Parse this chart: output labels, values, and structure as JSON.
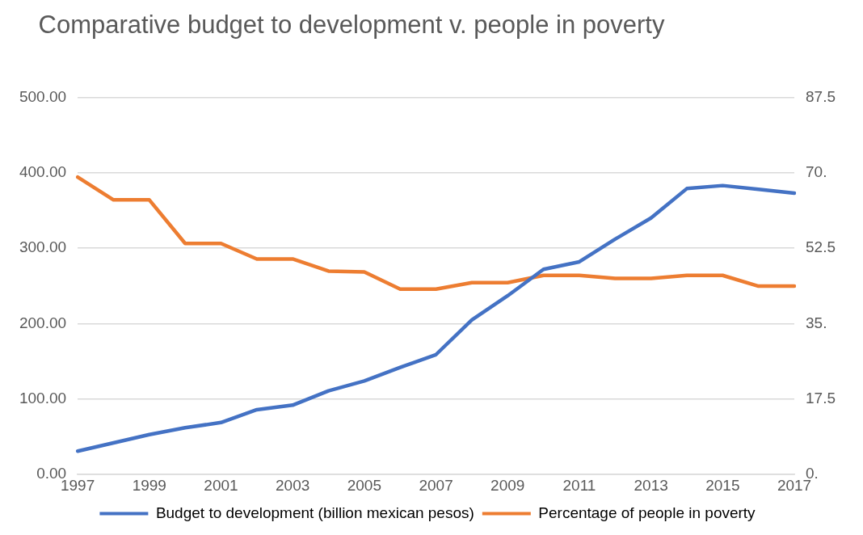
{
  "chart_data": {
    "type": "line",
    "title": "Comparative budget to development v. people in poverty",
    "categories": [
      "1997",
      null,
      "1999",
      null,
      "2001",
      null,
      "2003",
      null,
      "2005",
      null,
      "2007",
      null,
      "2009",
      null,
      "2011",
      null,
      "2013",
      null,
      "2015",
      null,
      "2017"
    ],
    "series": [
      {
        "name": "Budget to development (billion mexican pesos)",
        "color": "#4472c4",
        "values": [
          31,
          42,
          53,
          62,
          69,
          86,
          92,
          111,
          124,
          142,
          159,
          205,
          237,
          272,
          282,
          312,
          340,
          379,
          383,
          378,
          373
        ]
      },
      {
        "name": "Percentage of people in poverty",
        "color": "#ed7d31",
        "axis": "y2",
        "values": [
          69.0,
          63.7,
          63.7,
          53.6,
          53.6,
          50.0,
          50.0,
          47.2,
          47.0,
          43.0,
          43.0,
          44.5,
          44.5,
          46.2,
          46.2,
          45.5,
          45.5,
          46.2,
          46.2,
          43.7,
          43.7
        ]
      }
    ],
    "ylim": [
      0,
      500
    ],
    "yticks": [
      {
        "value": 0,
        "label": "0.00"
      },
      {
        "value": 100,
        "label": "100.00"
      },
      {
        "value": 200,
        "label": "200.00"
      },
      {
        "value": 300,
        "label": "300.00"
      },
      {
        "value": 400,
        "label": "400.00"
      },
      {
        "value": 500,
        "label": "500.00"
      }
    ],
    "y2lim": [
      0,
      87.5
    ],
    "y2ticks": [
      {
        "value": 0,
        "label": "0."
      },
      17.5,
      {
        "value": 35,
        "label": "35."
      },
      52.5,
      {
        "value": 70,
        "label": "70."
      },
      87.5
    ],
    "grid": "y",
    "legend": "bottom",
    "marker": "none",
    "line_style": "solid"
  }
}
